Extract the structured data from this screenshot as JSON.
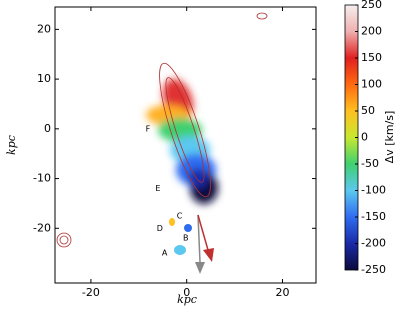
{
  "chart_data": {
    "type": "image-map",
    "xlabel": "kpc",
    "ylabel": "kpc",
    "xlim": [
      -27.5,
      27
    ],
    "ylim": [
      -31,
      24.5
    ],
    "xticks": [
      -20,
      0,
      20
    ],
    "yticks": [
      -20,
      -10,
      0,
      10,
      20
    ],
    "annotations": [
      {
        "text": "F",
        "x": -8.1,
        "y": 0
      },
      {
        "text": "E",
        "x": -6,
        "y": -12
      },
      {
        "text": "C",
        "x": -1.5,
        "y": -17.5
      },
      {
        "text": "D",
        "x": -5.6,
        "y": -20
      },
      {
        "text": "B",
        "x": -0.2,
        "y": -22
      },
      {
        "text": "A",
        "x": -4.6,
        "y": -25
      }
    ],
    "colorbar": {
      "label": "Δv [km/s]",
      "lim": [
        -250,
        250
      ],
      "ticks": [
        -250,
        -200,
        -150,
        -100,
        -50,
        0,
        50,
        100,
        150,
        200,
        250
      ],
      "colors": [
        "#0a0a3c",
        "#1a2aa8",
        "#2f6cf0",
        "#5cc8f0",
        "#40d070",
        "#c8e830",
        "#ffc020",
        "#ff6a10",
        "#e02020",
        "#f0b0b0",
        "#f6eeee"
      ]
    }
  }
}
